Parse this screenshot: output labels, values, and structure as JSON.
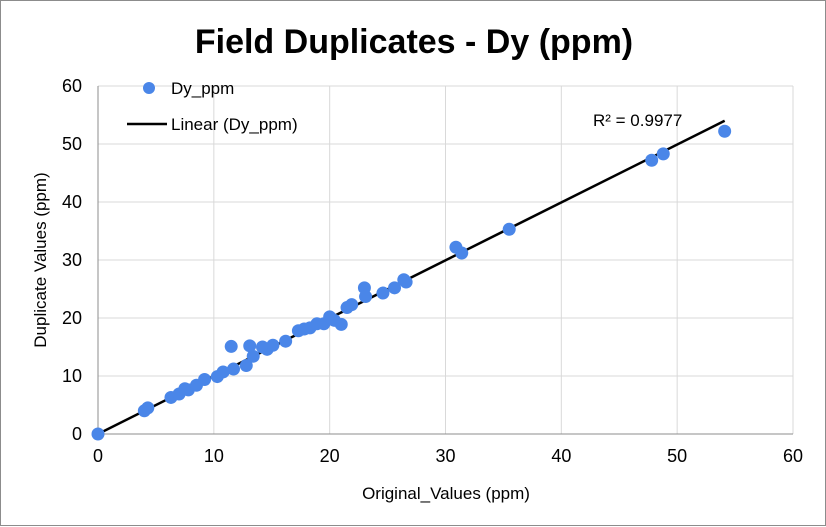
{
  "chart_data": {
    "type": "scatter",
    "title": "Field Duplicates  - Dy (ppm)",
    "xlabel": "Original_Values (ppm)",
    "ylabel": "Duplicate Values (ppm)",
    "xlim": [
      0,
      60
    ],
    "ylim": [
      0,
      60
    ],
    "xticks": [
      0,
      10,
      20,
      30,
      40,
      50,
      60
    ],
    "yticks": [
      0,
      10,
      20,
      30,
      40,
      50,
      60
    ],
    "grid": true,
    "legend_position": "top-left",
    "series": [
      {
        "name": "Dy_ppm",
        "color": "#4A86E8",
        "marker": "circle",
        "x": [
          0,
          4,
          4.3,
          6.3,
          7,
          7.5,
          7.8,
          8.5,
          9.2,
          10.3,
          10.8,
          11.5,
          11.7,
          12.8,
          13.1,
          13.4,
          14.2,
          14.6,
          15.1,
          16.2,
          17.3,
          17.8,
          18.3,
          18.9,
          19.5,
          20,
          20.4,
          21,
          21.5,
          21.9,
          23,
          23.1,
          24.6,
          25.6,
          26.4,
          26.6,
          30.9,
          31.4,
          35.5,
          47.8,
          48.8,
          54.1
        ],
        "y": [
          0,
          4,
          4.5,
          6.3,
          6.9,
          7.8,
          7.6,
          8.4,
          9.4,
          9.9,
          10.7,
          15.1,
          11.2,
          11.8,
          15.2,
          13.4,
          15,
          14.6,
          15.3,
          16,
          17.8,
          18.1,
          18.3,
          19,
          19,
          20.2,
          19.6,
          18.9,
          21.8,
          22.3,
          25.2,
          23.7,
          24.3,
          25.2,
          26.6,
          26.2,
          32.2,
          31.2,
          35.3,
          47.2,
          48.3,
          52.2
        ]
      }
    ],
    "trendline": {
      "name": "Linear (Dy_ppm)",
      "color": "#000000",
      "x": [
        0,
        54.1
      ],
      "y": [
        0,
        54
      ],
      "r2_label": "R² = 0.9977"
    }
  }
}
